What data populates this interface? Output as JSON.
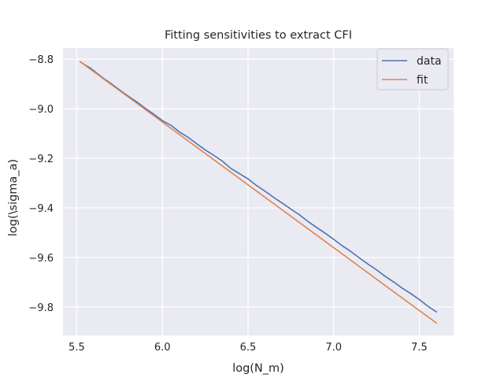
{
  "chart_data": {
    "type": "line",
    "title": "Fitting sensitivities to extract CFI",
    "xlabel": "log(N_m)",
    "ylabel": "log(\\sigma_a)",
    "xlim": [
      5.42,
      7.7
    ],
    "ylim": [
      -9.915,
      -8.755
    ],
    "xticks": [
      5.5,
      6.0,
      6.5,
      7.0,
      7.5
    ],
    "xtick_labels": [
      "5.5",
      "6.0",
      "6.5",
      "7.0",
      "7.5"
    ],
    "yticks": [
      -8.8,
      -9.0,
      -9.2,
      -9.4,
      -9.6,
      -9.8
    ],
    "ytick_labels": [
      "−8.8",
      "−9.0",
      "−9.2",
      "−9.4",
      "−9.6",
      "−9.8"
    ],
    "grid": true,
    "legend_position": "top-right",
    "series": [
      {
        "name": "data",
        "color": "#4c72b0",
        "x": [
          5.52,
          5.55,
          5.58,
          5.62,
          5.66,
          5.7,
          5.75,
          5.8,
          5.85,
          5.9,
          5.95,
          6.0,
          6.05,
          6.1,
          6.15,
          6.2,
          6.25,
          6.3,
          6.35,
          6.4,
          6.45,
          6.5,
          6.55,
          6.6,
          6.65,
          6.7,
          6.75,
          6.8,
          6.85,
          6.9,
          6.95,
          7.0,
          7.05,
          7.1,
          7.15,
          7.2,
          7.25,
          7.3,
          7.35,
          7.4,
          7.45,
          7.5,
          7.55,
          7.6
        ],
        "values": [
          -8.81,
          -8.824,
          -8.836,
          -8.858,
          -8.879,
          -8.898,
          -8.924,
          -8.949,
          -8.972,
          -8.998,
          -9.022,
          -9.048,
          -9.067,
          -9.094,
          -9.115,
          -9.141,
          -9.166,
          -9.188,
          -9.211,
          -9.241,
          -9.262,
          -9.283,
          -9.31,
          -9.333,
          -9.358,
          -9.381,
          -9.405,
          -9.428,
          -9.455,
          -9.479,
          -9.502,
          -9.527,
          -9.553,
          -9.576,
          -9.602,
          -9.627,
          -9.65,
          -9.676,
          -9.699,
          -9.724,
          -9.746,
          -9.77,
          -9.797,
          -9.82
        ]
      },
      {
        "name": "fit",
        "color": "#dd8452",
        "x": [
          5.52,
          7.6
        ],
        "values": [
          -8.81,
          -9.865
        ]
      }
    ]
  }
}
